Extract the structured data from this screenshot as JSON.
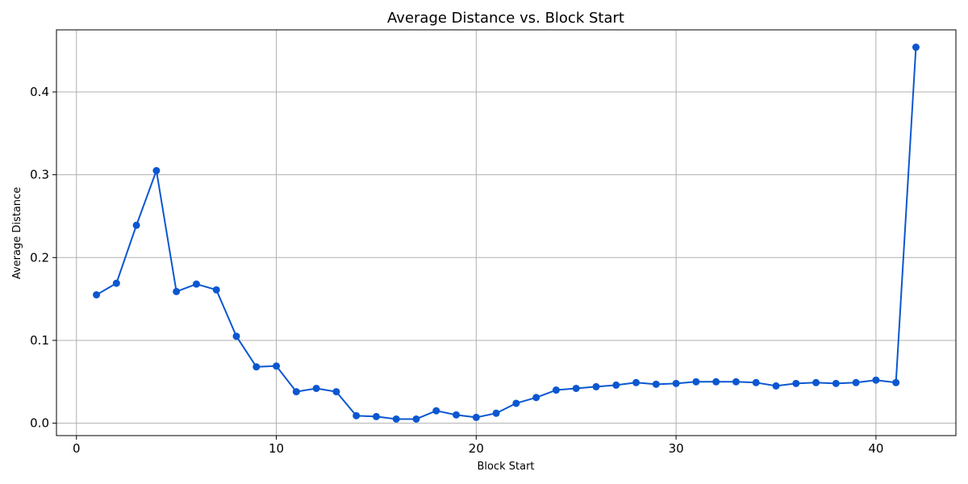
{
  "chart_data": {
    "type": "line",
    "title": "Average Distance vs. Block Start",
    "xlabel": "Block Start",
    "ylabel": "Average Distance",
    "xlim": [
      -1,
      44
    ],
    "ylim": [
      -0.015,
      0.475
    ],
    "xticks": [
      0,
      10,
      20,
      30,
      40
    ],
    "yticks": [
      0.0,
      0.1,
      0.2,
      0.3,
      0.4
    ],
    "grid": true,
    "legend": "none",
    "series": [
      {
        "color": "#0b57d0",
        "x": [
          1,
          2,
          3,
          4,
          5,
          6,
          7,
          8,
          9,
          10,
          11,
          12,
          13,
          14,
          15,
          16,
          17,
          18,
          19,
          20,
          21,
          22,
          23,
          24,
          25,
          26,
          27,
          28,
          29,
          30,
          31,
          32,
          33,
          34,
          35,
          36,
          37,
          38,
          39,
          40,
          41,
          42
        ],
        "y": [
          0.155,
          0.169,
          0.239,
          0.305,
          0.159,
          0.168,
          0.161,
          0.105,
          0.068,
          0.069,
          0.038,
          0.042,
          0.038,
          0.009,
          0.008,
          0.005,
          0.005,
          0.015,
          0.01,
          0.007,
          0.012,
          0.024,
          0.031,
          0.04,
          0.042,
          0.044,
          0.046,
          0.049,
          0.047,
          0.048,
          0.05,
          0.05,
          0.05,
          0.049,
          0.045,
          0.048,
          0.049,
          0.048,
          0.049,
          0.052,
          0.049,
          0.454
        ]
      }
    ]
  }
}
